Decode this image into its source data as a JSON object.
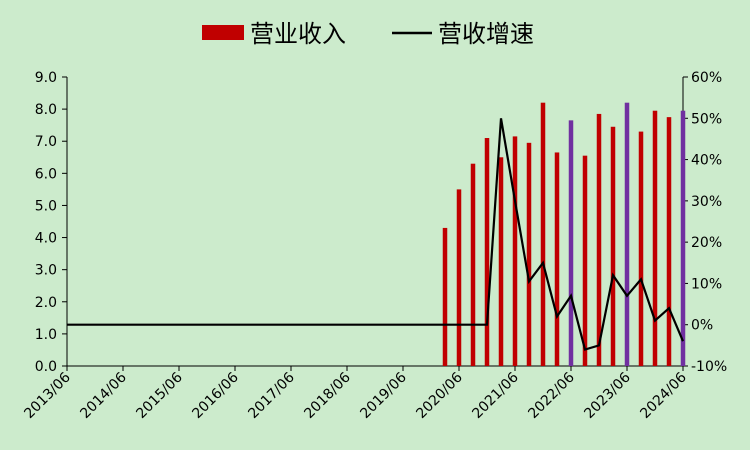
{
  "chart_data": {
    "type": "bar",
    "legend": {
      "position": "top",
      "entries": [
        {
          "label": "营业收入",
          "kind": "bar",
          "color": "#c00000"
        },
        {
          "label": "营收增速",
          "kind": "line",
          "color": "#000000"
        }
      ]
    },
    "colors": {
      "background": "#ccebcc",
      "bar": "#c00000",
      "bar_highlight": "#7030a0",
      "line": "#000000"
    },
    "x_tick_labels": [
      "2013/06",
      "2014/06",
      "2015/06",
      "2016/06",
      "2017/06",
      "2018/06",
      "2019/06",
      "2020/06",
      "2021/06",
      "2022/06",
      "2023/06",
      "2024/06"
    ],
    "y_left": {
      "ticks": [
        "0.0",
        "1.0",
        "2.0",
        "3.0",
        "4.0",
        "5.0",
        "6.0",
        "7.0",
        "8.0",
        "9.0"
      ],
      "min": 0,
      "max": 9
    },
    "y_right": {
      "ticks": [
        "-10%",
        "0%",
        "10%",
        "20%",
        "30%",
        "40%",
        "50%",
        "60%"
      ],
      "min": -10,
      "max": 60
    },
    "grid": false,
    "series": [
      {
        "name": "营业收入",
        "type": "bar",
        "axis": "left",
        "points": [
          {
            "x": "2020/03",
            "value": 4.3,
            "highlight": false
          },
          {
            "x": "2020/06",
            "value": 5.5,
            "highlight": false
          },
          {
            "x": "2020/09",
            "value": 6.3,
            "highlight": false
          },
          {
            "x": "2020/12",
            "value": 7.1,
            "highlight": false
          },
          {
            "x": "2021/03",
            "value": 6.5,
            "highlight": false
          },
          {
            "x": "2021/06",
            "value": 7.15,
            "highlight": false
          },
          {
            "x": "2021/09",
            "value": 6.95,
            "highlight": false
          },
          {
            "x": "2021/12",
            "value": 8.2,
            "highlight": false
          },
          {
            "x": "2022/03",
            "value": 6.65,
            "highlight": false
          },
          {
            "x": "2022/06",
            "value": 7.65,
            "highlight": true
          },
          {
            "x": "2022/09",
            "value": 6.55,
            "highlight": false
          },
          {
            "x": "2022/12",
            "value": 7.85,
            "highlight": false
          },
          {
            "x": "2023/03",
            "value": 7.45,
            "highlight": false
          },
          {
            "x": "2023/06",
            "value": 8.2,
            "highlight": true
          },
          {
            "x": "2023/09",
            "value": 7.3,
            "highlight": false
          },
          {
            "x": "2023/12",
            "value": 7.95,
            "highlight": false
          },
          {
            "x": "2024/03",
            "value": 7.75,
            "highlight": false
          },
          {
            "x": "2024/06",
            "value": 7.95,
            "highlight": true
          }
        ]
      },
      {
        "name": "营收增速",
        "type": "line",
        "axis": "right",
        "points": [
          {
            "x": "2013/06",
            "value": 0
          },
          {
            "x": "2020/12",
            "value": 0
          },
          {
            "x": "2021/03",
            "value": 50
          },
          {
            "x": "2021/06",
            "value": 30
          },
          {
            "x": "2021/09",
            "value": 10.5
          },
          {
            "x": "2021/12",
            "value": 15
          },
          {
            "x": "2022/03",
            "value": 2
          },
          {
            "x": "2022/06",
            "value": 7
          },
          {
            "x": "2022/09",
            "value": -6
          },
          {
            "x": "2022/12",
            "value": -5
          },
          {
            "x": "2023/03",
            "value": 12
          },
          {
            "x": "2023/06",
            "value": 7
          },
          {
            "x": "2023/09",
            "value": 11
          },
          {
            "x": "2023/12",
            "value": 1
          },
          {
            "x": "2024/03",
            "value": 4
          },
          {
            "x": "2024/06",
            "value": -4
          }
        ]
      }
    ]
  }
}
